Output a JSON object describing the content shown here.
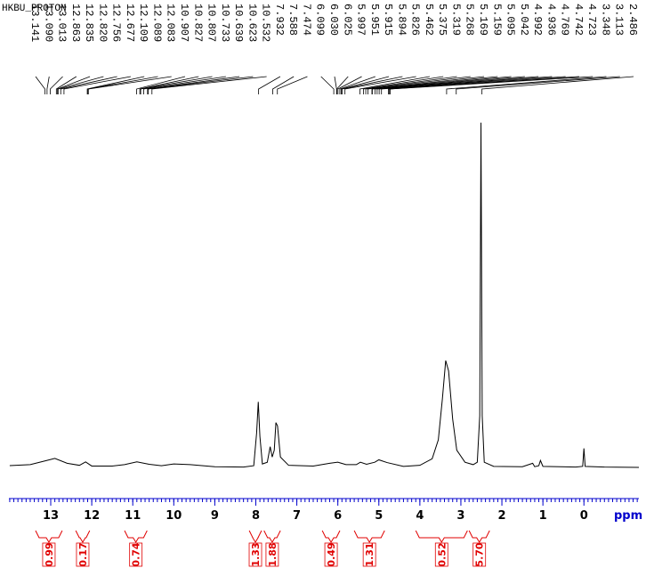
{
  "chart_data": {
    "type": "nmr",
    "title": "HKBU_PROTON",
    "xlabel": "ppm",
    "xlim": [
      14.02,
      -1.34
    ],
    "xticks": [
      13,
      12,
      11,
      10,
      9,
      8,
      7,
      6,
      5,
      4,
      3,
      2,
      1,
      0
    ],
    "xminor_step": 0.1,
    "ylim": [
      0,
      102
    ],
    "axis_color": "#0000cc",
    "line_color": "#000000",
    "integral_color": "#e00000",
    "peaks": {
      "values": [
        13.141,
        13.09,
        13.013,
        12.863,
        12.835,
        12.82,
        12.756,
        12.677,
        12.109,
        12.089,
        12.083,
        10.907,
        10.827,
        10.807,
        10.733,
        10.639,
        10.623,
        10.532,
        7.932,
        7.588,
        7.474,
        6.099,
        6.03,
        6.025,
        5.997,
        5.951,
        5.915,
        5.894,
        5.826,
        5.462,
        5.375,
        5.319,
        5.268,
        5.169,
        5.159,
        5.095,
        5.042,
        4.992,
        4.936,
        4.769,
        4.742,
        4.723,
        3.348,
        3.113,
        2.486
      ],
      "value_labels": [
        "13.141",
        "13.090",
        "13.013",
        "12.863",
        "12.835",
        "12.820",
        "12.756",
        "12.677",
        "12.109",
        "12.089",
        "12.083",
        "10.907",
        "10.827",
        "10.807",
        "10.733",
        "10.639",
        "10.623",
        "10.532",
        "7.932",
        "7.588",
        "7.474",
        "6.099",
        "6.030",
        "6.025",
        "5.997",
        "5.951",
        "5.915",
        "5.894",
        "5.826",
        "5.462",
        "5.375",
        "5.319",
        "5.268",
        "5.169",
        "5.159",
        "5.095",
        "5.042",
        "4.992",
        "4.936",
        "4.769",
        "4.742",
        "4.723",
        "3.348",
        "3.113",
        "2.486"
      ]
    },
    "integrals": {
      "ranges": [
        [
          13.37,
          12.72
        ],
        [
          12.39,
          12.05
        ],
        [
          11.2,
          10.65
        ],
        [
          8.16,
          7.86
        ],
        [
          7.8,
          7.4
        ],
        [
          6.38,
          5.95
        ],
        [
          5.6,
          4.86
        ],
        [
          4.1,
          2.84
        ],
        [
          2.8,
          2.3
        ]
      ],
      "values": [
        0.99,
        0.17,
        0.74,
        1.33,
        1.88,
        0.49,
        1.31,
        0.52,
        5.7
      ],
      "value_labels": [
        "0.99",
        "0.17",
        "0.74",
        "1.33",
        "1.88",
        "0.49",
        "1.31",
        "0.52",
        "5.70"
      ]
    },
    "spectrum": {
      "x": [
        14.0,
        13.5,
        13.1,
        12.9,
        12.6,
        12.3,
        12.15,
        12.0,
        11.5,
        11.2,
        10.9,
        10.6,
        10.3,
        10.0,
        9.6,
        9.0,
        8.3,
        8.05,
        7.98,
        7.94,
        7.9,
        7.84,
        7.72,
        7.65,
        7.6,
        7.55,
        7.51,
        7.47,
        7.4,
        7.2,
        6.6,
        6.2,
        6.0,
        5.8,
        5.55,
        5.45,
        5.3,
        5.1,
        5.0,
        4.8,
        4.4,
        4.0,
        3.7,
        3.55,
        3.45,
        3.37,
        3.3,
        3.2,
        3.1,
        2.9,
        2.7,
        2.6,
        2.54,
        2.51,
        2.48,
        2.43,
        2.2,
        1.5,
        1.25,
        1.2,
        1.1,
        1.06,
        1.0,
        0.2,
        0.03,
        0.0,
        -0.03,
        -0.5,
        -1.34
      ],
      "values": [
        0.5,
        0.8,
        2.0,
        2.6,
        1.2,
        0.6,
        1.6,
        0.4,
        0.4,
        0.8,
        1.6,
        0.9,
        0.5,
        1.0,
        0.8,
        0.2,
        0.1,
        0.5,
        10,
        19,
        9,
        1,
        1.5,
        6,
        3,
        5,
        13,
        12,
        3,
        0.6,
        0.4,
        1.2,
        1.5,
        0.8,
        0.8,
        1.5,
        0.9,
        1.5,
        2.2,
        1.4,
        0.3,
        0.6,
        2.5,
        8,
        20,
        31,
        28,
        14,
        5,
        1.5,
        0.8,
        1.5,
        15,
        100,
        15,
        1.5,
        0.3,
        0.2,
        1.2,
        0.2,
        0.5,
        2.0,
        0.3,
        0.1,
        0.3,
        5.5,
        0.3,
        0.1,
        0
      ]
    }
  }
}
